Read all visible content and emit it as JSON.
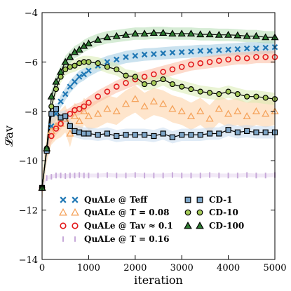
{
  "chart_data": {
    "type": "line",
    "xlabel": "iteration",
    "ylabel": "𝓛av",
    "xlim": [
      0,
      5000
    ],
    "ylim": [
      -14,
      -4
    ],
    "xticks": [
      0,
      1000,
      2000,
      3000,
      4000,
      5000
    ],
    "xtick_labels": [
      "0",
      "1000",
      "2000",
      "3000",
      "4000",
      "5000"
    ],
    "yticks": [
      -14,
      -12,
      -10,
      -8,
      -6,
      -4
    ],
    "ytick_labels": [
      "−14",
      "−12",
      "−10",
      "−8",
      "−6",
      "−4"
    ],
    "grid": false,
    "legend_placement": "lower",
    "series": [
      {
        "name": "QuALe @ T_eff",
        "legend_label": "QuALe @ Teff",
        "marker": "x",
        "color": "#1f77b4",
        "band_color": "#9ecae1",
        "line": false,
        "x": [
          0,
          100,
          200,
          300,
          400,
          500,
          600,
          700,
          800,
          900,
          1000,
          1200,
          1400,
          1600,
          1800,
          2000,
          2200,
          2400,
          2600,
          2800,
          3000,
          3200,
          3400,
          3600,
          3800,
          4000,
          4200,
          4400,
          4600,
          4800,
          5000
        ],
        "y": [
          -11.1,
          -9.6,
          -8.6,
          -8.1,
          -7.6,
          -7.3,
          -7.0,
          -6.8,
          -6.6,
          -6.5,
          -6.35,
          -6.15,
          -6.0,
          -5.9,
          -5.8,
          -5.75,
          -5.7,
          -5.68,
          -5.65,
          -5.62,
          -5.6,
          -5.58,
          -5.55,
          -5.55,
          -5.52,
          -5.5,
          -5.48,
          -5.45,
          -5.45,
          -5.42,
          -5.4
        ]
      },
      {
        "name": "QuALe @ T = 0.08",
        "legend_label": "QuALe @ T = 0.08",
        "marker": "triangle-open",
        "color": "#f5a35c",
        "band_color": "#fdd0a2",
        "line": false,
        "x": [
          0,
          100,
          200,
          300,
          400,
          500,
          600,
          700,
          800,
          900,
          1000,
          1200,
          1400,
          1600,
          1800,
          2000,
          2200,
          2400,
          2600,
          2800,
          3000,
          3200,
          3400,
          3600,
          3800,
          4000,
          4200,
          4400,
          4600,
          4800,
          5000
        ],
        "y": [
          -11.1,
          -9.5,
          -8.8,
          -8.6,
          -8.5,
          -8.3,
          -8.9,
          -8.2,
          -8.4,
          -8.0,
          -8.2,
          -8.1,
          -7.9,
          -8.0,
          -7.7,
          -7.5,
          -7.8,
          -7.6,
          -7.7,
          -7.9,
          -8.0,
          -8.2,
          -8.0,
          -8.3,
          -7.9,
          -8.1,
          -8.0,
          -8.2,
          -8.0,
          -8.1,
          -8.0
        ]
      },
      {
        "name": "QuALe @ T_av ≈ 0.1",
        "legend_label": "QuALe @ Tav ≈ 0.1",
        "marker": "circle-open",
        "color": "#e31a1c",
        "band_color": "#fcbba1",
        "line": false,
        "x": [
          0,
          100,
          200,
          300,
          400,
          500,
          600,
          700,
          800,
          900,
          1000,
          1200,
          1400,
          1600,
          1800,
          2000,
          2200,
          2400,
          2600,
          2800,
          3000,
          3200,
          3400,
          3600,
          3800,
          4000,
          4200,
          4400,
          4600,
          4800,
          5000
        ],
        "y": [
          -11.1,
          -9.6,
          -9.0,
          -8.7,
          -8.5,
          -8.2,
          -8.1,
          -7.95,
          -7.9,
          -7.8,
          -7.65,
          -7.4,
          -7.2,
          -7.0,
          -6.85,
          -6.7,
          -6.6,
          -6.5,
          -6.4,
          -6.3,
          -6.2,
          -6.1,
          -6.05,
          -6.0,
          -5.95,
          -5.9,
          -5.85,
          -5.85,
          -5.8,
          -5.8,
          -5.8
        ]
      },
      {
        "name": "QuALe @ T = 0.16",
        "legend_label": "QuALe @ T = 0.16",
        "marker": "vbar",
        "color": "#c7a9d9",
        "band_color": "#e6d5ee",
        "line": false,
        "x": [
          0,
          100,
          200,
          300,
          400,
          500,
          600,
          700,
          800,
          900,
          1000,
          1200,
          1400,
          1600,
          1800,
          2000,
          2200,
          2400,
          2600,
          2800,
          3000,
          3200,
          3400,
          3600,
          3800,
          4000,
          4200,
          4400,
          4600,
          4800,
          5000
        ],
        "y": [
          -11.1,
          -10.7,
          -10.65,
          -10.6,
          -10.6,
          -10.62,
          -10.6,
          -10.6,
          -10.58,
          -10.6,
          -10.6,
          -10.6,
          -10.58,
          -10.6,
          -10.6,
          -10.58,
          -10.6,
          -10.6,
          -10.6,
          -10.58,
          -10.6,
          -10.6,
          -10.6,
          -10.58,
          -10.6,
          -10.6,
          -10.6,
          -10.58,
          -10.6,
          -10.6,
          -10.58
        ]
      },
      {
        "name": "CD-1",
        "legend_label": "CD-1",
        "marker": "square",
        "color": "#7fa7c9",
        "band_color": "#c6dbef",
        "line": true,
        "x": [
          0,
          100,
          200,
          300,
          400,
          500,
          600,
          700,
          800,
          900,
          1000,
          1200,
          1400,
          1600,
          1800,
          2000,
          2200,
          2400,
          2600,
          2800,
          3000,
          3200,
          3400,
          3600,
          3800,
          4000,
          4200,
          4400,
          4600,
          4800,
          5000
        ],
        "y": [
          -11.1,
          -9.6,
          -8.1,
          -7.9,
          -8.25,
          -8.2,
          -8.6,
          -8.8,
          -8.85,
          -8.9,
          -8.9,
          -8.95,
          -8.9,
          -9.0,
          -8.95,
          -8.95,
          -8.95,
          -9.0,
          -8.9,
          -9.05,
          -8.95,
          -8.95,
          -8.95,
          -8.9,
          -8.9,
          -8.75,
          -8.85,
          -8.8,
          -8.85,
          -8.85,
          -8.85
        ]
      },
      {
        "name": "CD-10",
        "legend_label": "CD-10",
        "marker": "circle",
        "color": "#a6cc5a",
        "band_color": "#d9ebb0",
        "line": true,
        "x": [
          0,
          100,
          200,
          300,
          400,
          500,
          600,
          700,
          800,
          900,
          1000,
          1200,
          1400,
          1600,
          1800,
          2000,
          2200,
          2400,
          2600,
          2800,
          3000,
          3200,
          3400,
          3600,
          3800,
          4000,
          4200,
          4400,
          4600,
          4800,
          5000
        ],
        "y": [
          -11.1,
          -9.5,
          -7.8,
          -7.1,
          -6.6,
          -6.3,
          -6.2,
          -6.15,
          -6.05,
          -6.0,
          -6.0,
          -6.05,
          -6.2,
          -6.3,
          -6.55,
          -6.6,
          -6.9,
          -6.85,
          -6.7,
          -6.9,
          -7.0,
          -7.1,
          -7.2,
          -7.25,
          -7.3,
          -7.2,
          -7.3,
          -7.4,
          -7.4,
          -7.45,
          -7.5
        ]
      },
      {
        "name": "CD-100",
        "legend_label": "CD-100",
        "marker": "triangle",
        "color": "#2e7d32",
        "band_color": "#b5dcb2",
        "line": true,
        "x": [
          0,
          100,
          200,
          300,
          400,
          500,
          600,
          700,
          800,
          900,
          1000,
          1200,
          1400,
          1600,
          1800,
          2000,
          2200,
          2400,
          2600,
          2800,
          3000,
          3200,
          3400,
          3600,
          3800,
          4000,
          4200,
          4400,
          4600,
          4800,
          5000
        ],
        "y": [
          -11.1,
          -9.5,
          -7.4,
          -6.8,
          -6.4,
          -6.0,
          -5.8,
          -5.6,
          -5.5,
          -5.35,
          -5.25,
          -5.1,
          -5.0,
          -4.95,
          -4.9,
          -4.85,
          -4.85,
          -4.82,
          -4.82,
          -4.85,
          -4.85,
          -4.85,
          -4.88,
          -4.88,
          -4.9,
          -4.9,
          -4.92,
          -4.95,
          -4.95,
          -5.0,
          -5.0
        ]
      }
    ]
  }
}
